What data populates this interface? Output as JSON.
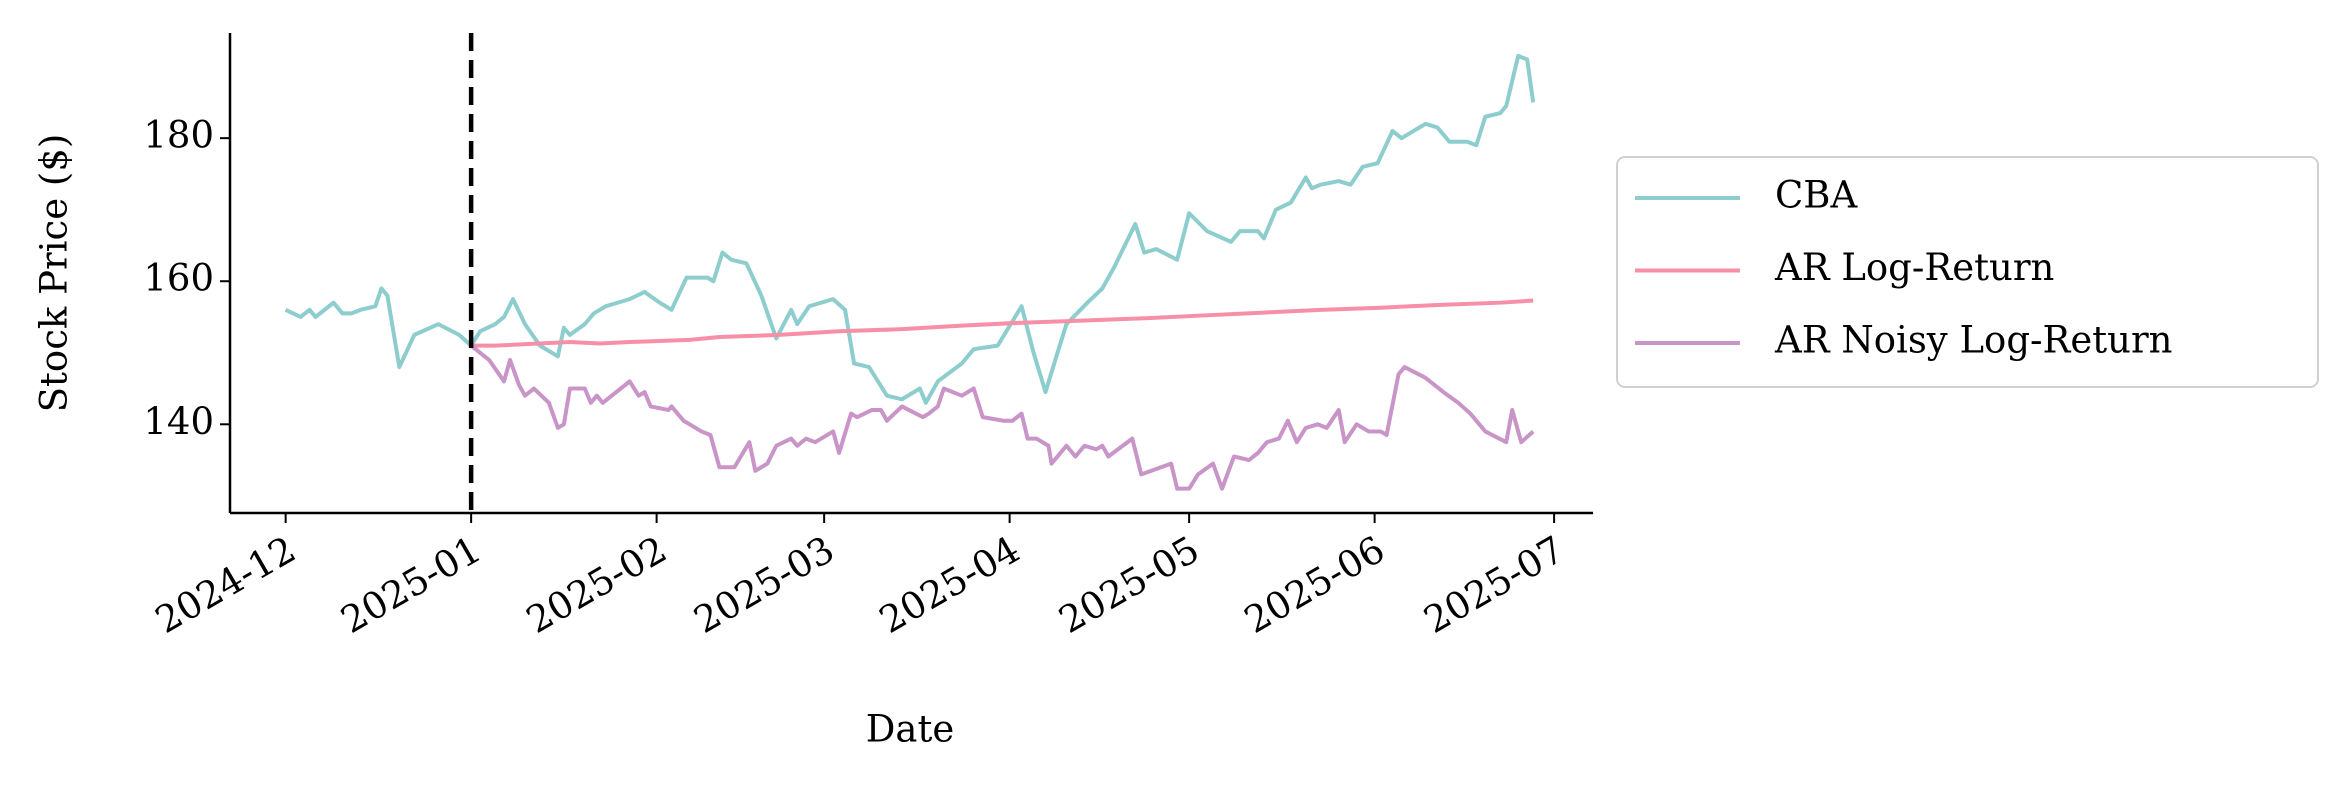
{
  "chart_data": {
    "type": "line",
    "xlabel": "Date",
    "ylabel": "Stock Price ($)",
    "xlim": [
      -9.3,
      218.5
    ],
    "ylim": [
      127.6,
      194.7
    ],
    "xticks": [
      {
        "value": 0,
        "label": "2024-12"
      },
      {
        "value": 31,
        "label": "2025-01"
      },
      {
        "value": 62,
        "label": "2025-02"
      },
      {
        "value": 90,
        "label": "2025-03"
      },
      {
        "value": 121,
        "label": "2025-04"
      },
      {
        "value": 151,
        "label": "2025-05"
      },
      {
        "value": 182,
        "label": "2025-06"
      },
      {
        "value": 212,
        "label": "2025-07"
      }
    ],
    "yticks": [
      140,
      160,
      180
    ],
    "vline": 31,
    "legend": "right outside",
    "grid": false,
    "series": [
      {
        "name": "CBA",
        "color": "#8ecdce",
        "x": [
          0,
          2.5,
          4,
          5,
          8,
          9.5,
          11,
          12.5,
          15,
          16,
          17,
          19,
          21.5,
          25.5,
          29,
          31,
          32.5,
          35,
          36.5,
          38,
          40,
          42.5,
          45.5,
          46.5,
          47.5,
          50,
          51.5,
          53.5,
          57.5,
          60,
          62.5,
          64.5,
          67,
          70.5,
          71.5,
          73,
          74.5,
          77,
          79.5,
          82,
          84.5,
          85.5,
          87.5,
          91.5,
          93.5,
          95,
          97.5,
          100.5,
          103,
          106,
          107,
          109,
          113,
          115,
          119,
          123,
          125,
          127,
          129,
          130.5,
          134,
          136.5,
          138.5,
          142,
          143.5,
          145.5,
          149,
          151,
          154,
          158,
          159.5,
          162.5,
          163.5,
          165.5,
          168,
          170.5,
          171.5,
          173,
          176,
          178,
          180,
          182.5,
          185,
          186.5,
          190.5,
          192.5,
          194.5,
          197.5,
          199,
          200.5,
          203,
          204,
          206,
          207.5,
          208.5
        ],
        "values": [
          156,
          155,
          156,
          155,
          157,
          155.5,
          155.5,
          156,
          156.5,
          159,
          158,
          148,
          152.5,
          154,
          152.5,
          151,
          153,
          154,
          155,
          157.5,
          154,
          151,
          149.5,
          153.5,
          152.5,
          154,
          155.5,
          156.5,
          157.5,
          158.5,
          157,
          156,
          160.5,
          160.5,
          160,
          164,
          163,
          162.5,
          158,
          152,
          156,
          154,
          156.5,
          157.5,
          156,
          148.5,
          148,
          144,
          143.5,
          145,
          143,
          146,
          148.5,
          150.5,
          151,
          156.5,
          150,
          144.5,
          150,
          154,
          157,
          159,
          162,
          168,
          164,
          164.5,
          163,
          169.5,
          167,
          165.5,
          167,
          167,
          166,
          170,
          171,
          174.5,
          173,
          173.5,
          174,
          173.5,
          176,
          176.5,
          181,
          180,
          182,
          181.5,
          179.5,
          179.5,
          179,
          183,
          183.5,
          184.5,
          191.5,
          191,
          185
        ]
      },
      {
        "name": "AR Log-Return",
        "color": "#f78fa7",
        "x": [
          31,
          35,
          47.5,
          52.5,
          57.5,
          67.5,
          72.5,
          82.5,
          92.5,
          103,
          113,
          123,
          133,
          143,
          153,
          163,
          173,
          183,
          193,
          203,
          208.5
        ],
        "values": [
          151,
          151,
          151.5,
          151.3,
          151.5,
          151.8,
          152.2,
          152.5,
          153,
          153.3,
          153.8,
          154.2,
          154.5,
          154.8,
          155.2,
          155.6,
          156,
          156.3,
          156.7,
          157,
          157.3
        ]
      },
      {
        "name": "AR Noisy Log-Return",
        "color": "#c994c7",
        "x": [
          31,
          34,
          36.5,
          37.5,
          39,
          40,
          41.5,
          44,
          45.5,
          46.5,
          47.5,
          50,
          51,
          52,
          53,
          57.5,
          59,
          60,
          61,
          64,
          64.5,
          66.5,
          69.5,
          71,
          72.5,
          75,
          77.5,
          78.5,
          80.5,
          82,
          84.5,
          85.5,
          87,
          88.5,
          91.5,
          92.5,
          94.5,
          95.5,
          98,
          99.5,
          100.5,
          103,
          106.5,
          107.5,
          109,
          110,
          113,
          115,
          116.5,
          120,
          121.5,
          123,
          124,
          125.5,
          127.5,
          128,
          130.5,
          132,
          133.5,
          135.5,
          136.5,
          137.5,
          141.5,
          143,
          148,
          149,
          151,
          152.5,
          155,
          156.5,
          158.5,
          161,
          162.5,
          164,
          166,
          167.5,
          169,
          170.5,
          172.5,
          174,
          176,
          177,
          179,
          181,
          183,
          184,
          186,
          187,
          190.5,
          193.5,
          196,
          198,
          200.5,
          204,
          205,
          206.5,
          208.5
        ],
        "values": [
          151,
          149,
          146,
          149,
          145.5,
          144,
          145,
          143,
          139.5,
          140,
          145,
          145,
          143,
          144,
          143,
          146,
          144,
          144.5,
          142.5,
          142,
          142.5,
          140.5,
          139,
          138.5,
          134,
          134,
          137.5,
          133.5,
          134.5,
          137,
          138,
          137,
          138,
          137.5,
          139,
          136,
          141.5,
          141,
          142,
          142,
          140.5,
          142.5,
          141,
          141.5,
          142.5,
          145,
          144,
          145,
          141,
          140.5,
          140.5,
          141.5,
          138,
          138,
          137,
          134.5,
          137,
          135.5,
          137,
          136.5,
          137,
          135.5,
          138,
          133,
          134.5,
          131,
          131,
          133,
          134.5,
          131,
          135.5,
          135,
          136,
          137.5,
          138,
          140.5,
          137.5,
          139.5,
          140,
          139.5,
          142,
          137.5,
          140,
          139,
          139,
          138.5,
          147,
          148,
          146.5,
          144.5,
          143,
          141.5,
          139,
          137.5,
          142,
          137.5,
          139
        ]
      }
    ]
  }
}
